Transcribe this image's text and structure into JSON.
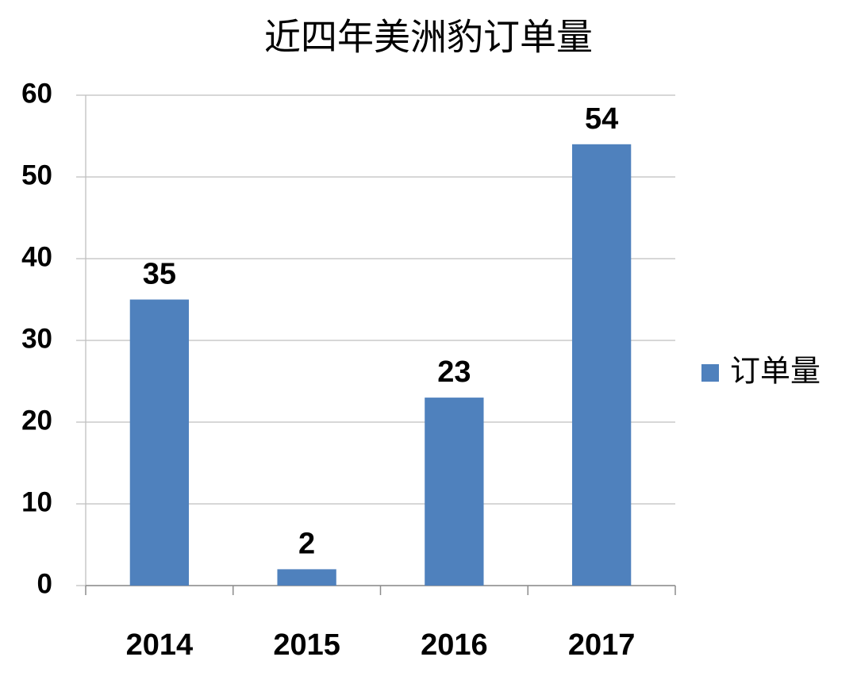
{
  "chart_data": {
    "type": "bar",
    "title": "近四年美洲豹订单量",
    "categories": [
      "2014",
      "2015",
      "2016",
      "2017"
    ],
    "series": [
      {
        "name": "订单量",
        "color": "#4f81bd",
        "values": [
          35,
          2,
          23,
          54
        ]
      }
    ],
    "ylim": [
      0,
      60
    ],
    "yticks": [
      0,
      10,
      20,
      30,
      40,
      50,
      60
    ],
    "grid": true,
    "legend": "right",
    "data_labels": true
  }
}
